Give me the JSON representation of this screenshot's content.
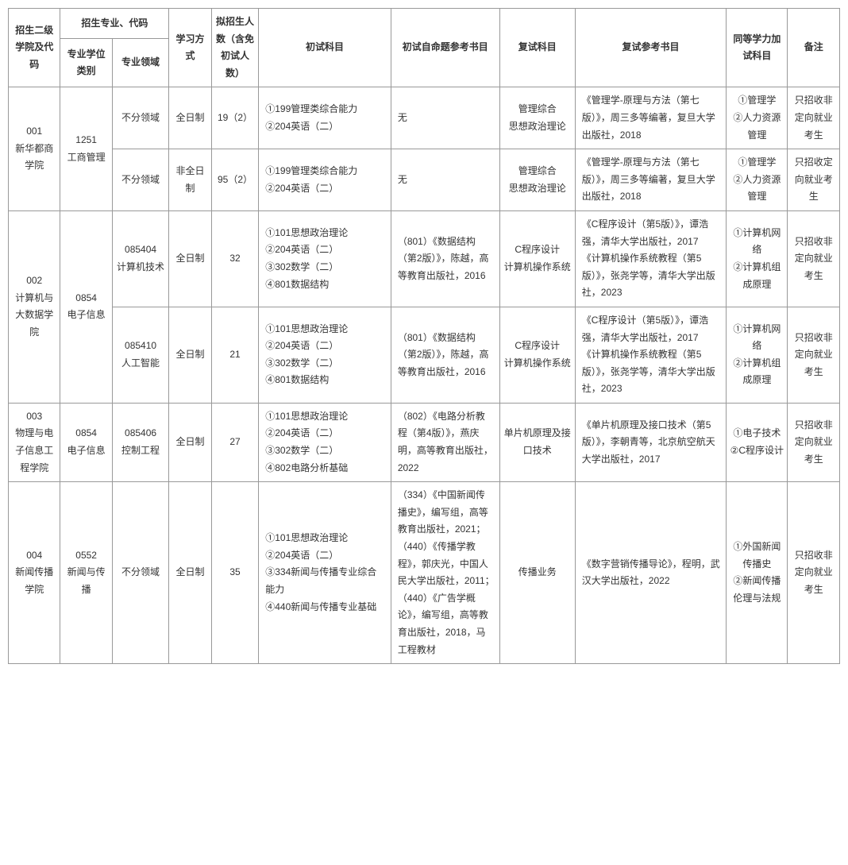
{
  "headers": {
    "college": "招生二级学院及代码",
    "major_code": "招生专业、代码",
    "degree_type": "专业学位类别",
    "field": "专业领域",
    "study_mode": "学习方式",
    "plan_num": "拟招生人数（含免初试人数）",
    "exam1": "初试科目",
    "ref1": "初试自命题参考书目",
    "exam2": "复试科目",
    "ref2": "复试参考书目",
    "add_exam": "同等学力加试科目",
    "note": "备注"
  },
  "rows": [
    {
      "college": "001\n新华都商学院",
      "college_rowspan": 2,
      "degree": "1251\n工商管理",
      "degree_rowspan": 2,
      "field": "不分领域",
      "study": "全日制",
      "num": "19（2）",
      "exam1": "①199管理类综合能力\n②204英语（二）",
      "ref1": "无",
      "exam2": "管理综合\n思想政治理论",
      "ref2": "《管理学-原理与方法（第七版）》，周三多等编著，复旦大学出版社，2018",
      "add": "①管理学\n②人力资源管理",
      "note": "只招收非定向就业考生"
    },
    {
      "field": "不分领域",
      "study": "非全日制",
      "num": "95（2）",
      "exam1": "①199管理类综合能力\n②204英语（二）",
      "ref1": "无",
      "exam2": "管理综合\n思想政治理论",
      "ref2": "《管理学-原理与方法（第七版）》，周三多等编著，复旦大学出版社，2018",
      "add": "①管理学\n②人力资源管理",
      "note": "只招收定向就业考生"
    },
    {
      "college": "002\n计算机与大数据学院",
      "college_rowspan": 2,
      "degree": "0854\n电子信息",
      "degree_rowspan": 2,
      "field": "085404\n计算机技术",
      "study": "全日制",
      "num": "32",
      "exam1": "①101思想政治理论\n②204英语（二）\n③302数学（二）\n④801数据结构",
      "ref1": "（801）《数据结构（第2版）》，陈越，高等教育出版社，2016",
      "exam2": "C程序设计\n计算机操作系统",
      "ref2": "《C程序设计（第5版）》，谭浩强，清华大学出版社，2017\n《计算机操作系统教程（第5版）》，张尧学等，清华大学出版社，2023",
      "add": "①计算机网络\n②计算机组成原理",
      "note": "只招收非定向就业考生"
    },
    {
      "field": "085410\n人工智能",
      "study": "全日制",
      "num": "21",
      "exam1": "①101思想政治理论\n②204英语（二）\n③302数学（二）\n④801数据结构",
      "ref1": "（801）《数据结构（第2版）》，陈越，高等教育出版社，2016",
      "exam2": "C程序设计\n计算机操作系统",
      "ref2": "《C程序设计（第5版）》，谭浩强，清华大学出版社，2017\n《计算机操作系统教程（第5版）》，张尧学等，清华大学出版社，2023",
      "add": "①计算机网络\n②计算机组成原理",
      "note": "只招收非定向就业考生"
    },
    {
      "college": "003\n物理与电子信息工程学院",
      "college_rowspan": 1,
      "degree": "0854\n电子信息",
      "degree_rowspan": 1,
      "field": "085406\n控制工程",
      "study": "全日制",
      "num": "27",
      "exam1": "①101思想政治理论\n②204英语（二）\n③302数学（二）\n④802电路分析基础",
      "ref1": "（802）《电路分析教程（第4版）》，燕庆明，高等教育出版社，2022",
      "exam2": "单片机原理及接口技术",
      "ref2": "《单片机原理及接口技术（第5版）》，李朝青等，北京航空航天大学出版社，2017",
      "add": "①电子技术\n②C程序设计",
      "note": "只招收非定向就业考生"
    },
    {
      "college": "004\n新闻传播学院",
      "college_rowspan": 1,
      "degree": "0552\n新闻与传播",
      "degree_rowspan": 1,
      "field": "不分领域",
      "study": "全日制",
      "num": "35",
      "exam1": "①101思想政治理论\n②204英语（二）\n③334新闻与传播专业综合能力\n④440新闻与传播专业基础",
      "ref1": "（334）《中国新闻传播史》，编写组，高等教育出版社，2021；\n（440）《传播学教程》，郭庆光，中国人民大学出版社，2011；\n（440）《广告学概论》，编写组，高等教育出版社，2018，马工程教材",
      "exam2": "传播业务",
      "ref2": "《数字营销传播导论》，程明，武汉大学出版社，2022",
      "add": "①外国新闻传播史\n②新闻传播伦理与法规",
      "note": "只招收非定向就业考生"
    }
  ]
}
